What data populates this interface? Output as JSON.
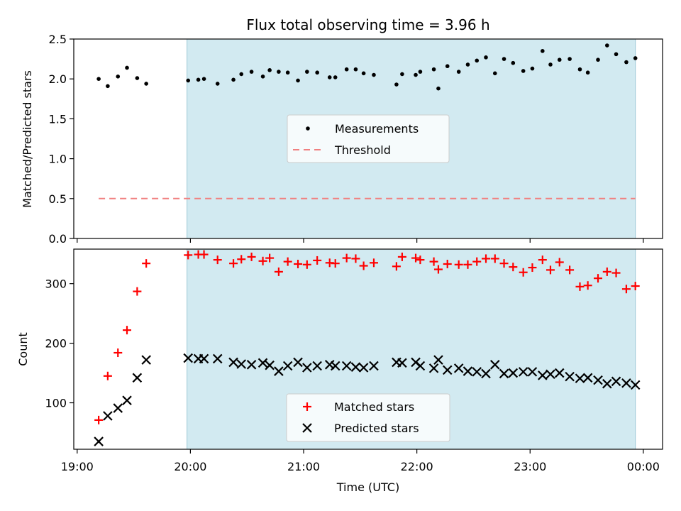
{
  "chart_data": [
    {
      "type": "scatter",
      "title": "Flux total observing time = 3.96 h",
      "ylabel": "Matched/Predicted stars",
      "xlabel": "",
      "ylim": [
        0,
        2.5
      ],
      "yticks": [
        "0.0",
        "0.5",
        "1.0",
        "1.5",
        "2.0",
        "2.5"
      ],
      "xlim_hours": [
        18.97,
        24.17
      ],
      "shaded_span_hours": [
        19.97,
        23.93
      ],
      "shade_color": "#add8e6",
      "legend_position": "center",
      "legend": [
        "Measurements",
        "Threshold"
      ],
      "threshold": {
        "name": "Threshold",
        "y": 0.5,
        "x_start_hours": 19.19,
        "x_end_hours": 23.93,
        "color": "#f08080"
      },
      "series": [
        {
          "name": "Measurements",
          "color": "#000000",
          "x_hours": [
            19.19,
            19.27,
            19.36,
            19.44,
            19.53,
            19.61,
            19.98,
            20.07,
            20.12,
            20.24,
            20.38,
            20.45,
            20.54,
            20.64,
            20.7,
            20.78,
            20.86,
            20.95,
            21.03,
            21.12,
            21.23,
            21.28,
            21.38,
            21.46,
            21.53,
            21.62,
            21.82,
            21.87,
            21.99,
            22.03,
            22.15,
            22.19,
            22.27,
            22.37,
            22.45,
            22.53,
            22.61,
            22.69,
            22.77,
            22.85,
            22.94,
            23.02,
            23.11,
            23.18,
            23.26,
            23.35,
            23.44,
            23.51,
            23.6,
            23.68,
            23.76,
            23.85,
            23.93
          ],
          "y": [
            2.0,
            1.91,
            2.03,
            2.14,
            2.01,
            1.94,
            1.98,
            1.99,
            2.0,
            1.94,
            1.99,
            2.06,
            2.09,
            2.03,
            2.11,
            2.09,
            2.08,
            1.98,
            2.09,
            2.08,
            2.02,
            2.02,
            2.12,
            2.12,
            2.07,
            2.05,
            1.93,
            2.06,
            2.05,
            2.09,
            2.12,
            1.88,
            2.16,
            2.09,
            2.18,
            2.23,
            2.27,
            2.07,
            2.25,
            2.2,
            2.1,
            2.13,
            2.35,
            2.18,
            2.24,
            2.25,
            2.12,
            2.08,
            2.24,
            2.42,
            2.31,
            2.21,
            2.26
          ]
        }
      ]
    },
    {
      "type": "scatter",
      "title": "",
      "ylabel": "Count",
      "xlabel": "Time (UTC)",
      "ylim": [
        22,
        358
      ],
      "yticks": [
        "100",
        "200",
        "300"
      ],
      "xticks": [
        "19:00",
        "20:00",
        "21:00",
        "22:00",
        "23:00",
        "00:00"
      ],
      "xlim_hours": [
        18.97,
        24.17
      ],
      "shaded_span_hours": [
        19.97,
        23.93
      ],
      "shade_color": "#add8e6",
      "legend_position": "lower center",
      "legend": [
        "Matched stars",
        "Predicted stars"
      ],
      "series": [
        {
          "name": "Matched stars",
          "marker": "+",
          "color": "#ff0000",
          "x_hours": [
            19.19,
            19.27,
            19.36,
            19.44,
            19.53,
            19.61,
            19.98,
            20.07,
            20.12,
            20.24,
            20.38,
            20.45,
            20.54,
            20.64,
            20.7,
            20.78,
            20.86,
            20.95,
            21.03,
            21.12,
            21.23,
            21.28,
            21.38,
            21.46,
            21.53,
            21.62,
            21.82,
            21.87,
            21.99,
            22.03,
            22.15,
            22.19,
            22.27,
            22.37,
            22.45,
            22.53,
            22.61,
            22.69,
            22.77,
            22.85,
            22.94,
            23.02,
            23.11,
            23.18,
            23.26,
            23.35,
            23.44,
            23.51,
            23.6,
            23.68,
            23.76,
            23.85,
            23.93
          ],
          "y": [
            71,
            145,
            184,
            222,
            287,
            334,
            348,
            349,
            349,
            340,
            334,
            341,
            345,
            338,
            343,
            320,
            337,
            333,
            332,
            339,
            335,
            334,
            343,
            342,
            330,
            335,
            329,
            345,
            343,
            340,
            337,
            324,
            333,
            332,
            332,
            337,
            342,
            342,
            334,
            328,
            319,
            327,
            340,
            323,
            336,
            323,
            295,
            297,
            309,
            320,
            318,
            291,
            296
          ]
        },
        {
          "name": "Predicted stars",
          "marker": "x",
          "color": "#000000",
          "x_hours": [
            19.19,
            19.27,
            19.36,
            19.44,
            19.53,
            19.61,
            19.98,
            20.07,
            20.12,
            20.24,
            20.38,
            20.45,
            20.54,
            20.64,
            20.7,
            20.78,
            20.86,
            20.95,
            21.03,
            21.12,
            21.23,
            21.28,
            21.38,
            21.46,
            21.53,
            21.62,
            21.82,
            21.87,
            21.99,
            22.03,
            22.15,
            22.19,
            22.27,
            22.37,
            22.45,
            22.53,
            22.61,
            22.69,
            22.77,
            22.85,
            22.94,
            23.02,
            23.11,
            23.18,
            23.26,
            23.35,
            23.44,
            23.51,
            23.6,
            23.68,
            23.76,
            23.85,
            23.93
          ],
          "y": [
            35,
            78,
            91,
            104,
            142,
            172,
            175,
            174,
            174,
            174,
            168,
            165,
            164,
            167,
            163,
            153,
            162,
            168,
            159,
            162,
            164,
            162,
            162,
            160,
            159,
            162,
            168,
            167,
            168,
            162,
            158,
            172,
            155,
            158,
            153,
            152,
            149,
            164,
            149,
            150,
            152,
            152,
            146,
            148,
            150,
            144,
            141,
            142,
            138,
            132,
            136,
            133,
            130
          ]
        }
      ]
    }
  ]
}
